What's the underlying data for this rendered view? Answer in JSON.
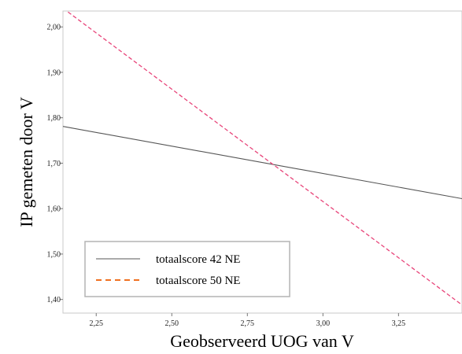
{
  "chart_data": {
    "type": "line",
    "title": "",
    "xlabel": "Geobserveerd UOG van V",
    "ylabel": "IP gemeten door V",
    "xlim": [
      2.14,
      3.46
    ],
    "ylim": [
      1.37,
      2.035
    ],
    "x_ticks": [
      2.25,
      2.5,
      2.75,
      3.0,
      3.25
    ],
    "x_tick_labels": [
      "2,25",
      "2,50",
      "2,75",
      "3,00",
      "3,25"
    ],
    "y_ticks": [
      1.4,
      1.5,
      1.6,
      1.7,
      1.8,
      1.9,
      2.0
    ],
    "y_tick_labels": [
      "1,40",
      "1,50",
      "1,60",
      "1,70",
      "1,80",
      "1,90",
      "2,00"
    ],
    "grid": false,
    "legend_position": "bottom-left",
    "series": [
      {
        "name": "totaalscore 42 NE",
        "style": "solid",
        "color": "#555555",
        "x": [
          2.14,
          3.46
        ],
        "y": [
          1.781,
          1.622
        ]
      },
      {
        "name": "totaalscore 50 NE",
        "style": "dashed",
        "color": "#e8457a",
        "legend_color": "#f07020",
        "x": [
          2.14,
          3.46
        ],
        "y": [
          2.041,
          1.388
        ]
      }
    ]
  }
}
